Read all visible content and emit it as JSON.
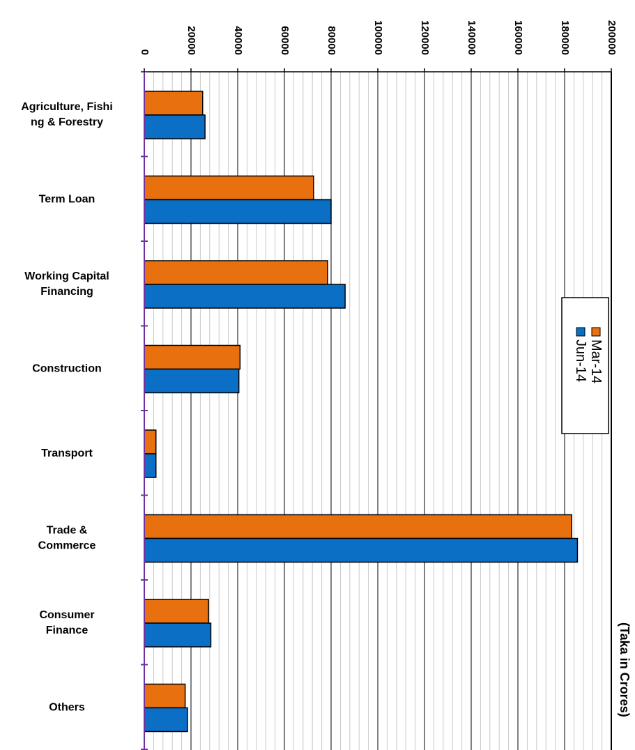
{
  "chart_data": {
    "type": "bar",
    "orientation": "horizontal",
    "categories": [
      [
        "Agriculture, Fishi",
        "ng & Forestry"
      ],
      [
        "Term Loan"
      ],
      [
        "Working Capital",
        "Financing"
      ],
      [
        "Construction"
      ],
      [
        "Transport"
      ],
      [
        "Trade &",
        "Commerce"
      ],
      [
        "Consumer",
        "Finance"
      ],
      [
        "Others"
      ]
    ],
    "series": [
      {
        "name": "Mar-14",
        "color": "#E8700E",
        "values": [
          25000,
          72500,
          78500,
          41000,
          5000,
          183000,
          27500,
          17500
        ]
      },
      {
        "name": "Jun-14",
        "color": "#0B6FC6",
        "values": [
          26000,
          80000,
          86000,
          40500,
          5000,
          185500,
          28500,
          18500
        ]
      }
    ],
    "xlim": [
      0,
      200000
    ],
    "ticks": [
      "0",
      "20000",
      "40000",
      "60000",
      "80000",
      "100000",
      "120000",
      "140000",
      "160000",
      "180000",
      "200000"
    ],
    "unit_label": "(Taka in Crores)",
    "grid": true,
    "legend_position": "right"
  }
}
